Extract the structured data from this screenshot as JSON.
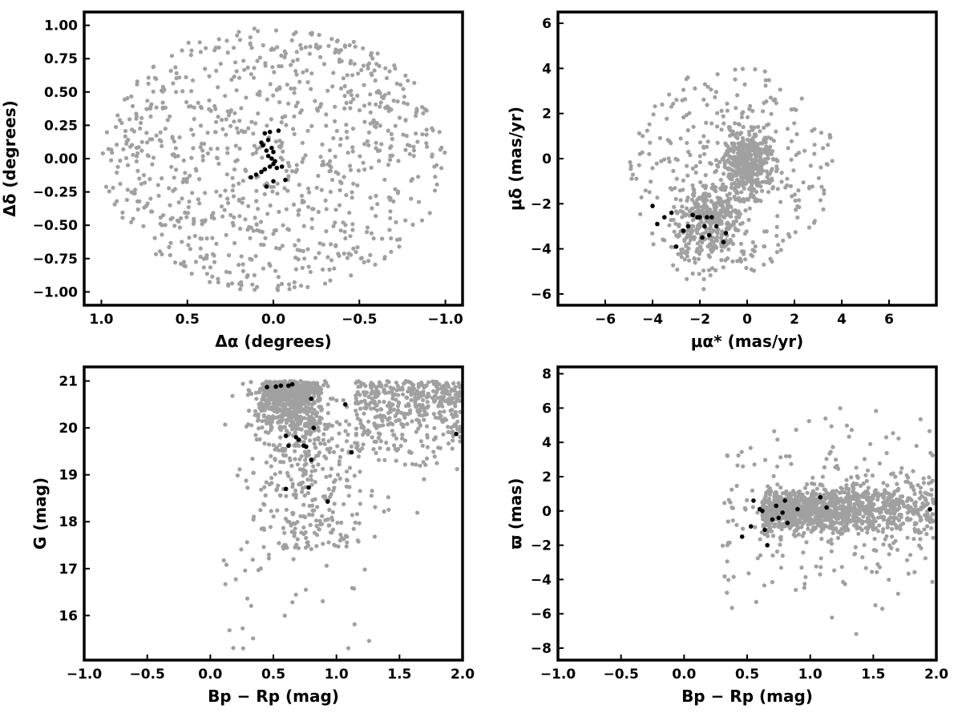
{
  "colors": {
    "field": "#a0a0a0",
    "members": "#000000",
    "frame": "#000000"
  },
  "chart_data": [
    {
      "type": "scatter",
      "xlabel": "Δα (degrees)",
      "ylabel": "Δδ (degrees)",
      "xlim": [
        1.1,
        -1.1
      ],
      "ylim": [
        -1.1,
        1.1
      ],
      "xticks": [
        1.0,
        0.5,
        0.0,
        -0.5,
        -1.0
      ],
      "xtick_labels": [
        "1.0",
        "0.5",
        "0.0",
        "−0.5",
        "−1.0"
      ],
      "yticks": [
        -1.0,
        -0.75,
        -0.5,
        -0.25,
        0.0,
        0.25,
        0.5,
        0.75,
        1.0
      ],
      "ytick_labels": [
        "−1.00",
        "−0.75",
        "−0.50",
        "−0.25",
        "0.00",
        "0.25",
        "0.50",
        "0.75",
        "1.00"
      ],
      "field": {
        "generator": "disk",
        "n": 900,
        "cx": 0.0,
        "cy": 0.0,
        "rx": 1.0,
        "ry": 1.0
      },
      "members": {
        "x": [
          0.02,
          -0.03,
          0.05,
          0.07,
          0.06,
          0.04,
          0.0,
          0.03,
          0.01,
          -0.01,
          0.0,
          0.02,
          -0.02,
          0.05,
          0.07,
          0.1,
          0.13,
          -0.05,
          -0.07,
          0.0,
          0.04,
          0.03,
          0.01
        ],
        "y": [
          0.2,
          0.21,
          0.19,
          0.12,
          0.1,
          0.06,
          0.05,
          0.02,
          0.0,
          -0.02,
          -0.04,
          -0.06,
          -0.07,
          -0.08,
          -0.1,
          -0.12,
          -0.14,
          -0.06,
          -0.16,
          -0.17,
          -0.21,
          0.14,
          0.08
        ]
      }
    },
    {
      "type": "scatter",
      "xlabel": "μα* (mas/yr)",
      "ylabel": "μδ (mas/yr)",
      "xlim": [
        -8,
        8
      ],
      "ylim": [
        -6.5,
        6.5
      ],
      "xticks": [
        -6,
        -4,
        -2,
        0,
        2,
        4,
        6
      ],
      "xtick_labels": [
        "−6",
        "−4",
        "−2",
        "0",
        "2",
        "4",
        "6"
      ],
      "yticks": [
        -6,
        -4,
        -2,
        0,
        2,
        4,
        6
      ],
      "ytick_labels": [
        "−6",
        "−4",
        "−2",
        "0",
        "2",
        "4",
        "6"
      ],
      "field": {
        "generator": "pm",
        "n": 1100
      },
      "members": {
        "x": [
          -4.0,
          -3.8,
          -3.5,
          -3.2,
          -3.0,
          -2.7,
          -2.5,
          -2.3,
          -2.1,
          -2.0,
          -1.9,
          -1.8,
          -1.7,
          -1.6,
          -1.5,
          -1.3,
          -1.0,
          -0.9
        ],
        "y": [
          -2.1,
          -2.9,
          -2.6,
          -2.4,
          -3.9,
          -3.2,
          -3.0,
          -2.5,
          -2.6,
          -2.6,
          -3.5,
          -3.0,
          -2.6,
          -3.4,
          -2.6,
          -3.0,
          -3.7,
          -3.3
        ]
      }
    },
    {
      "type": "scatter",
      "xlabel": "Bp − Rp (mag)",
      "ylabel": "G (mag)",
      "xlim": [
        -1.0,
        2.0
      ],
      "ylim": [
        15.05,
        21.3
      ],
      "xticks": [
        -1.0,
        -0.5,
        0.0,
        0.5,
        1.0,
        1.5,
        2.0
      ],
      "xtick_labels": [
        "−1.0",
        "−0.5",
        "0.0",
        "0.5",
        "1.0",
        "1.5",
        "2.0"
      ],
      "yticks": [
        16,
        17,
        18,
        19,
        20,
        21
      ],
      "ytick_labels": [
        "16",
        "17",
        "18",
        "19",
        "20",
        "21"
      ],
      "field": {
        "generator": "cmd",
        "n": 1400
      },
      "members": {
        "x": [
          0.45,
          0.52,
          0.56,
          0.62,
          0.65,
          0.8,
          1.07,
          0.6,
          0.68,
          0.7,
          0.82,
          0.76,
          0.74,
          0.8,
          0.62,
          0.6,
          0.78,
          0.93,
          1.12,
          1.95
        ],
        "y": [
          20.87,
          20.88,
          20.9,
          20.9,
          20.93,
          20.62,
          20.5,
          19.83,
          19.8,
          19.75,
          20.0,
          19.6,
          19.62,
          19.32,
          19.62,
          18.7,
          18.73,
          18.43,
          19.48,
          19.87
        ]
      }
    },
    {
      "type": "scatter",
      "xlabel": "Bp − Rp (mag)",
      "ylabel": "ϖ (mas)",
      "xlim": [
        -1.0,
        2.0
      ],
      "ylim": [
        -8.7,
        8.4
      ],
      "xticks": [
        -1.0,
        -0.5,
        0.0,
        0.5,
        1.0,
        1.5,
        2.0
      ],
      "xtick_labels": [
        "−1.0",
        "−0.5",
        "0.0",
        "0.5",
        "1.0",
        "1.5",
        "2.0"
      ],
      "yticks": [
        -8,
        -6,
        -4,
        -2,
        0,
        2,
        4,
        6,
        8
      ],
      "ytick_labels": [
        "−8",
        "−6",
        "−4",
        "−2",
        "0",
        "2",
        "4",
        "6",
        "8"
      ],
      "field": {
        "generator": "plx",
        "n": 1400
      },
      "members": {
        "x": [
          0.46,
          0.53,
          0.55,
          0.6,
          0.62,
          0.64,
          0.66,
          0.7,
          0.73,
          0.75,
          0.78,
          0.8,
          0.82,
          0.9,
          1.08,
          1.13,
          1.95
        ],
        "y": [
          -1.5,
          -0.9,
          0.6,
          0.1,
          0.0,
          -1.1,
          -2.0,
          -0.5,
          0.3,
          -0.4,
          -0.1,
          0.6,
          -0.7,
          0.1,
          0.8,
          0.2,
          0.1
        ]
      }
    }
  ]
}
